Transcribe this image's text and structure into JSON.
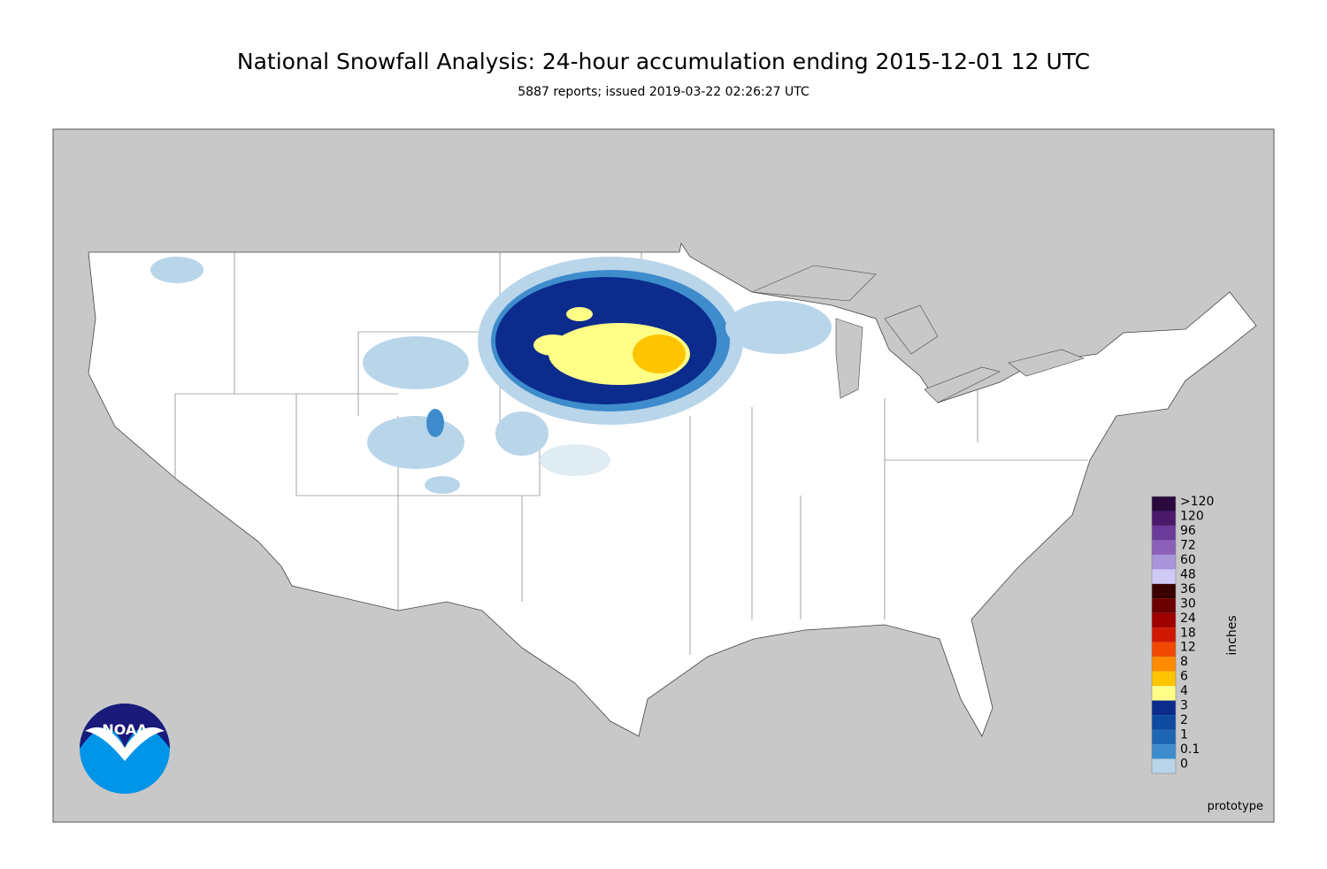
{
  "header": {
    "title": "National Snowfall Analysis: 24-hour accumulation ending 2015-12-01 12 UTC",
    "subtitle": "5887 reports; issued 2019-03-22 02:26:27 UTC"
  },
  "legend": {
    "unit": "inches",
    "labels": [
      ">120",
      "120",
      "96",
      "72",
      "60",
      "48",
      "36",
      "30",
      "24",
      "18",
      "12",
      "8",
      "6",
      "4",
      "3",
      "2",
      "1",
      "0.1",
      "0"
    ],
    "colors": [
      "#2b0a3d",
      "#4b1a6a",
      "#6b3b99",
      "#8a60b8",
      "#a894d8",
      "#cfcaf6",
      "#3a0000",
      "#6a0000",
      "#a00000",
      "#d01800",
      "#f04a00",
      "#ff8c00",
      "#ffc400",
      "#ffff88",
      "#0b2c8c",
      "#0d4aa0",
      "#1e66b4",
      "#3e8ccc",
      "#b9d5ea"
    ]
  },
  "logo": {
    "text": "NOAA"
  },
  "footer": {
    "note": "prototype"
  }
}
